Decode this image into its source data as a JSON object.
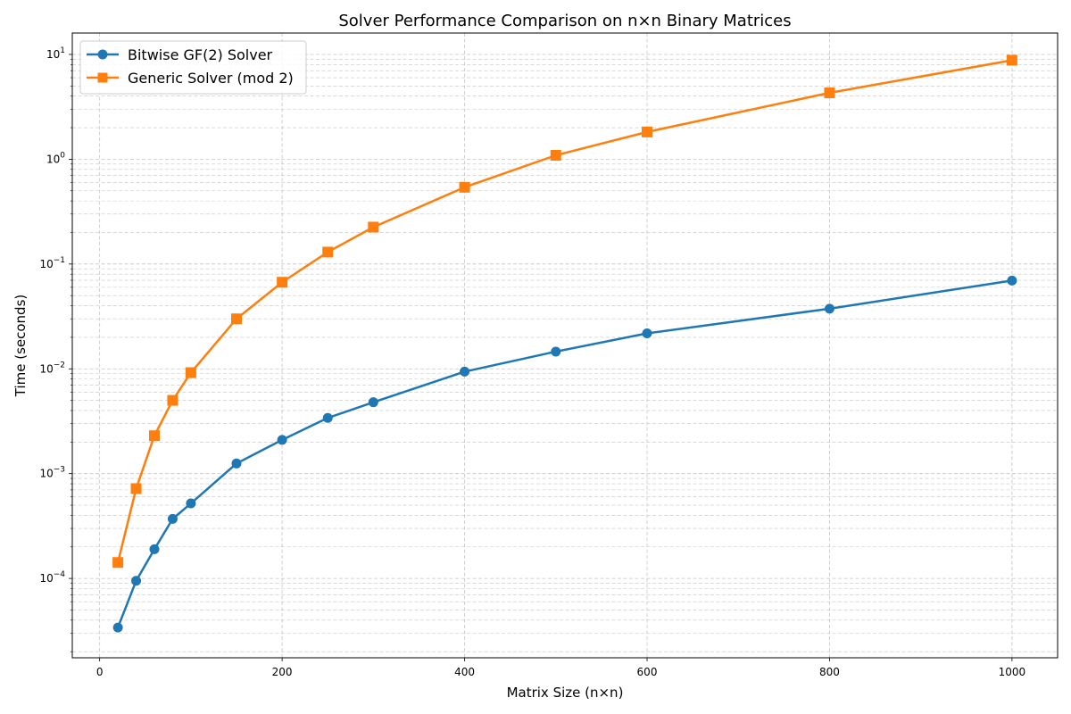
{
  "chart_data": {
    "type": "line",
    "title": "Solver Performance Comparison on n×n Binary Matrices",
    "xlabel": "Matrix Size (n×n)",
    "ylabel": "Time (seconds)",
    "xlim": [
      -30,
      1050
    ],
    "yscale": "log",
    "ylim": [
      1.75e-05,
      16
    ],
    "grid": true,
    "legend_position": "top-left",
    "x_ticks": [
      0,
      200,
      400,
      600,
      800,
      1000
    ],
    "y_ticks": [
      {
        "value": 0.0001,
        "base": "10",
        "exp": "−4"
      },
      {
        "value": 0.001,
        "base": "10",
        "exp": "−3"
      },
      {
        "value": 0.01,
        "base": "10",
        "exp": "−2"
      },
      {
        "value": 0.1,
        "base": "10",
        "exp": "−1"
      },
      {
        "value": 1,
        "base": "10",
        "exp": "0"
      },
      {
        "value": 10,
        "base": "10",
        "exp": "1"
      }
    ],
    "series": [
      {
        "name": "Bitwise GF(2) Solver",
        "color": "#1f77b4",
        "marker": "circle",
        "x": [
          20,
          40,
          60,
          80,
          100,
          150,
          200,
          250,
          300,
          400,
          500,
          600,
          800,
          1000
        ],
        "y": [
          3.4e-05,
          9.5e-05,
          0.00019,
          0.00037,
          0.00052,
          0.00125,
          0.0021,
          0.0034,
          0.0048,
          0.0094,
          0.0146,
          0.0218,
          0.0375,
          0.0695
        ]
      },
      {
        "name": "Generic Solver (mod 2)",
        "color": "#ff7f0e",
        "marker": "square",
        "x": [
          20,
          40,
          60,
          80,
          100,
          150,
          200,
          250,
          300,
          400,
          500,
          600,
          800,
          1000
        ],
        "y": [
          0.000142,
          0.00072,
          0.0023,
          0.005,
          0.0092,
          0.03,
          0.067,
          0.13,
          0.225,
          0.54,
          1.09,
          1.82,
          4.3,
          8.8
        ]
      }
    ]
  }
}
